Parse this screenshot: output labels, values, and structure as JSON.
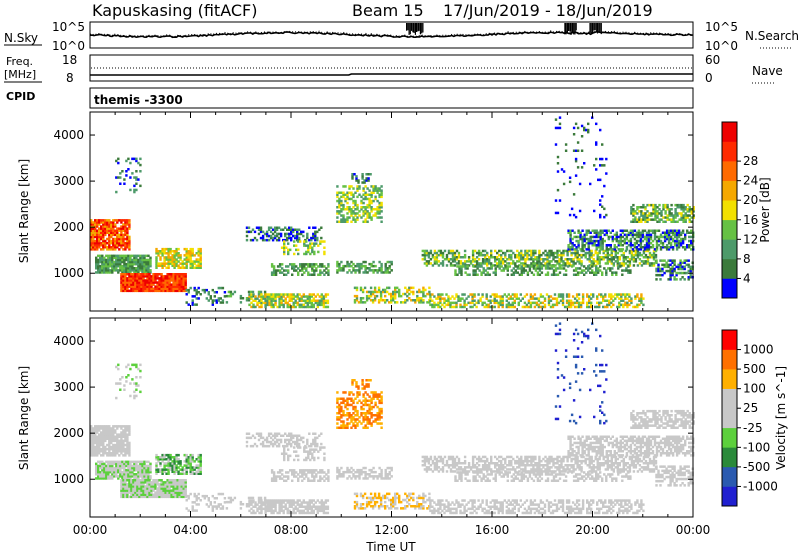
{
  "header": {
    "station": "Kapuskasing (fitACF)",
    "beam": "Beam 15",
    "date_range": "17/Jun/2019 - 18/Jun/2019"
  },
  "noise_panel": {
    "left_label": "N.Sky",
    "right_label": "N.Search",
    "left_ticks": [
      "10^5",
      "10^0"
    ],
    "right_ticks": [
      "10^5",
      "10^0"
    ]
  },
  "freq_panel": {
    "left_label_line1": "Freq.",
    "left_label_line2": "[MHz]",
    "right_label": "Nave",
    "left_ticks": [
      "18",
      "8"
    ],
    "right_ticks": [
      "60",
      "0"
    ]
  },
  "cpid": {
    "label": "CPID",
    "value": "themis -3300"
  },
  "colors": {
    "power": [
      "#0000ff",
      "#3b7a3b",
      "#4d9a6a",
      "#66c144",
      "#f2e000",
      "#f5a800",
      "#ff6a00",
      "#ff2a00",
      "#ee0000"
    ],
    "velocity": [
      "#ff0000",
      "#ff7000",
      "#ffb000",
      "#c8c8c8",
      "#c8c8c8",
      "#5cd03c",
      "#2a8a3a",
      "#2a5ab0",
      "#2020d0"
    ]
  },
  "chart_data": [
    {
      "type": "heatmap",
      "quantity": "Power",
      "ylabel": "Slant Range [km]",
      "x_ticks": [
        "00:00",
        "04:00",
        "08:00",
        "12:00",
        "16:00",
        "20:00",
        "00:00"
      ],
      "y_ticks": [
        1000,
        2000,
        3000,
        4000
      ],
      "ylim": [
        180,
        4500
      ],
      "colorbar_label": "Power [dB]",
      "colorbar_ticks": [
        "4",
        "8",
        "12",
        "16",
        "20",
        "24",
        "28"
      ],
      "xlim_hours": [
        0,
        24
      ]
    },
    {
      "type": "heatmap",
      "quantity": "Velocity",
      "ylabel": "Slant Range [km]",
      "xlabel": "Time UT",
      "x_ticks": [
        "00:00",
        "04:00",
        "08:00",
        "12:00",
        "16:00",
        "20:00",
        "00:00"
      ],
      "y_ticks": [
        1000,
        2000,
        3000,
        4000
      ],
      "ylim": [
        180,
        4500
      ],
      "colorbar_label": "Velocity [m s^-1]",
      "colorbar_ticks": [
        "1000",
        "500",
        "100",
        "25",
        "-25",
        "-100",
        "-500",
        "-1000"
      ],
      "xlim_hours": [
        0,
        24
      ]
    }
  ]
}
